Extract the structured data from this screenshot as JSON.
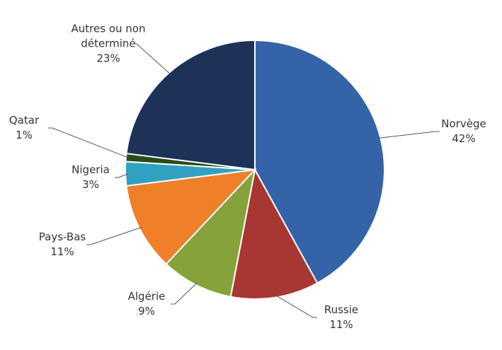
{
  "chart_data": {
    "type": "pie",
    "categories": [
      "Norvège",
      "Russie",
      "Algérie",
      "Pays-Bas",
      "Nigeria",
      "Qatar",
      "Autres ou non déterminé"
    ],
    "values": [
      42,
      11,
      9,
      11,
      3,
      1,
      23
    ],
    "value_labels": [
      "42%",
      "11%",
      "9%",
      "11%",
      "3%",
      "1%",
      "23%"
    ],
    "colors": [
      "#3563a8",
      "#a83632",
      "#86a23a",
      "#f07f2a",
      "#30a2c0",
      "#2a4a1a",
      "#1c3257"
    ]
  }
}
